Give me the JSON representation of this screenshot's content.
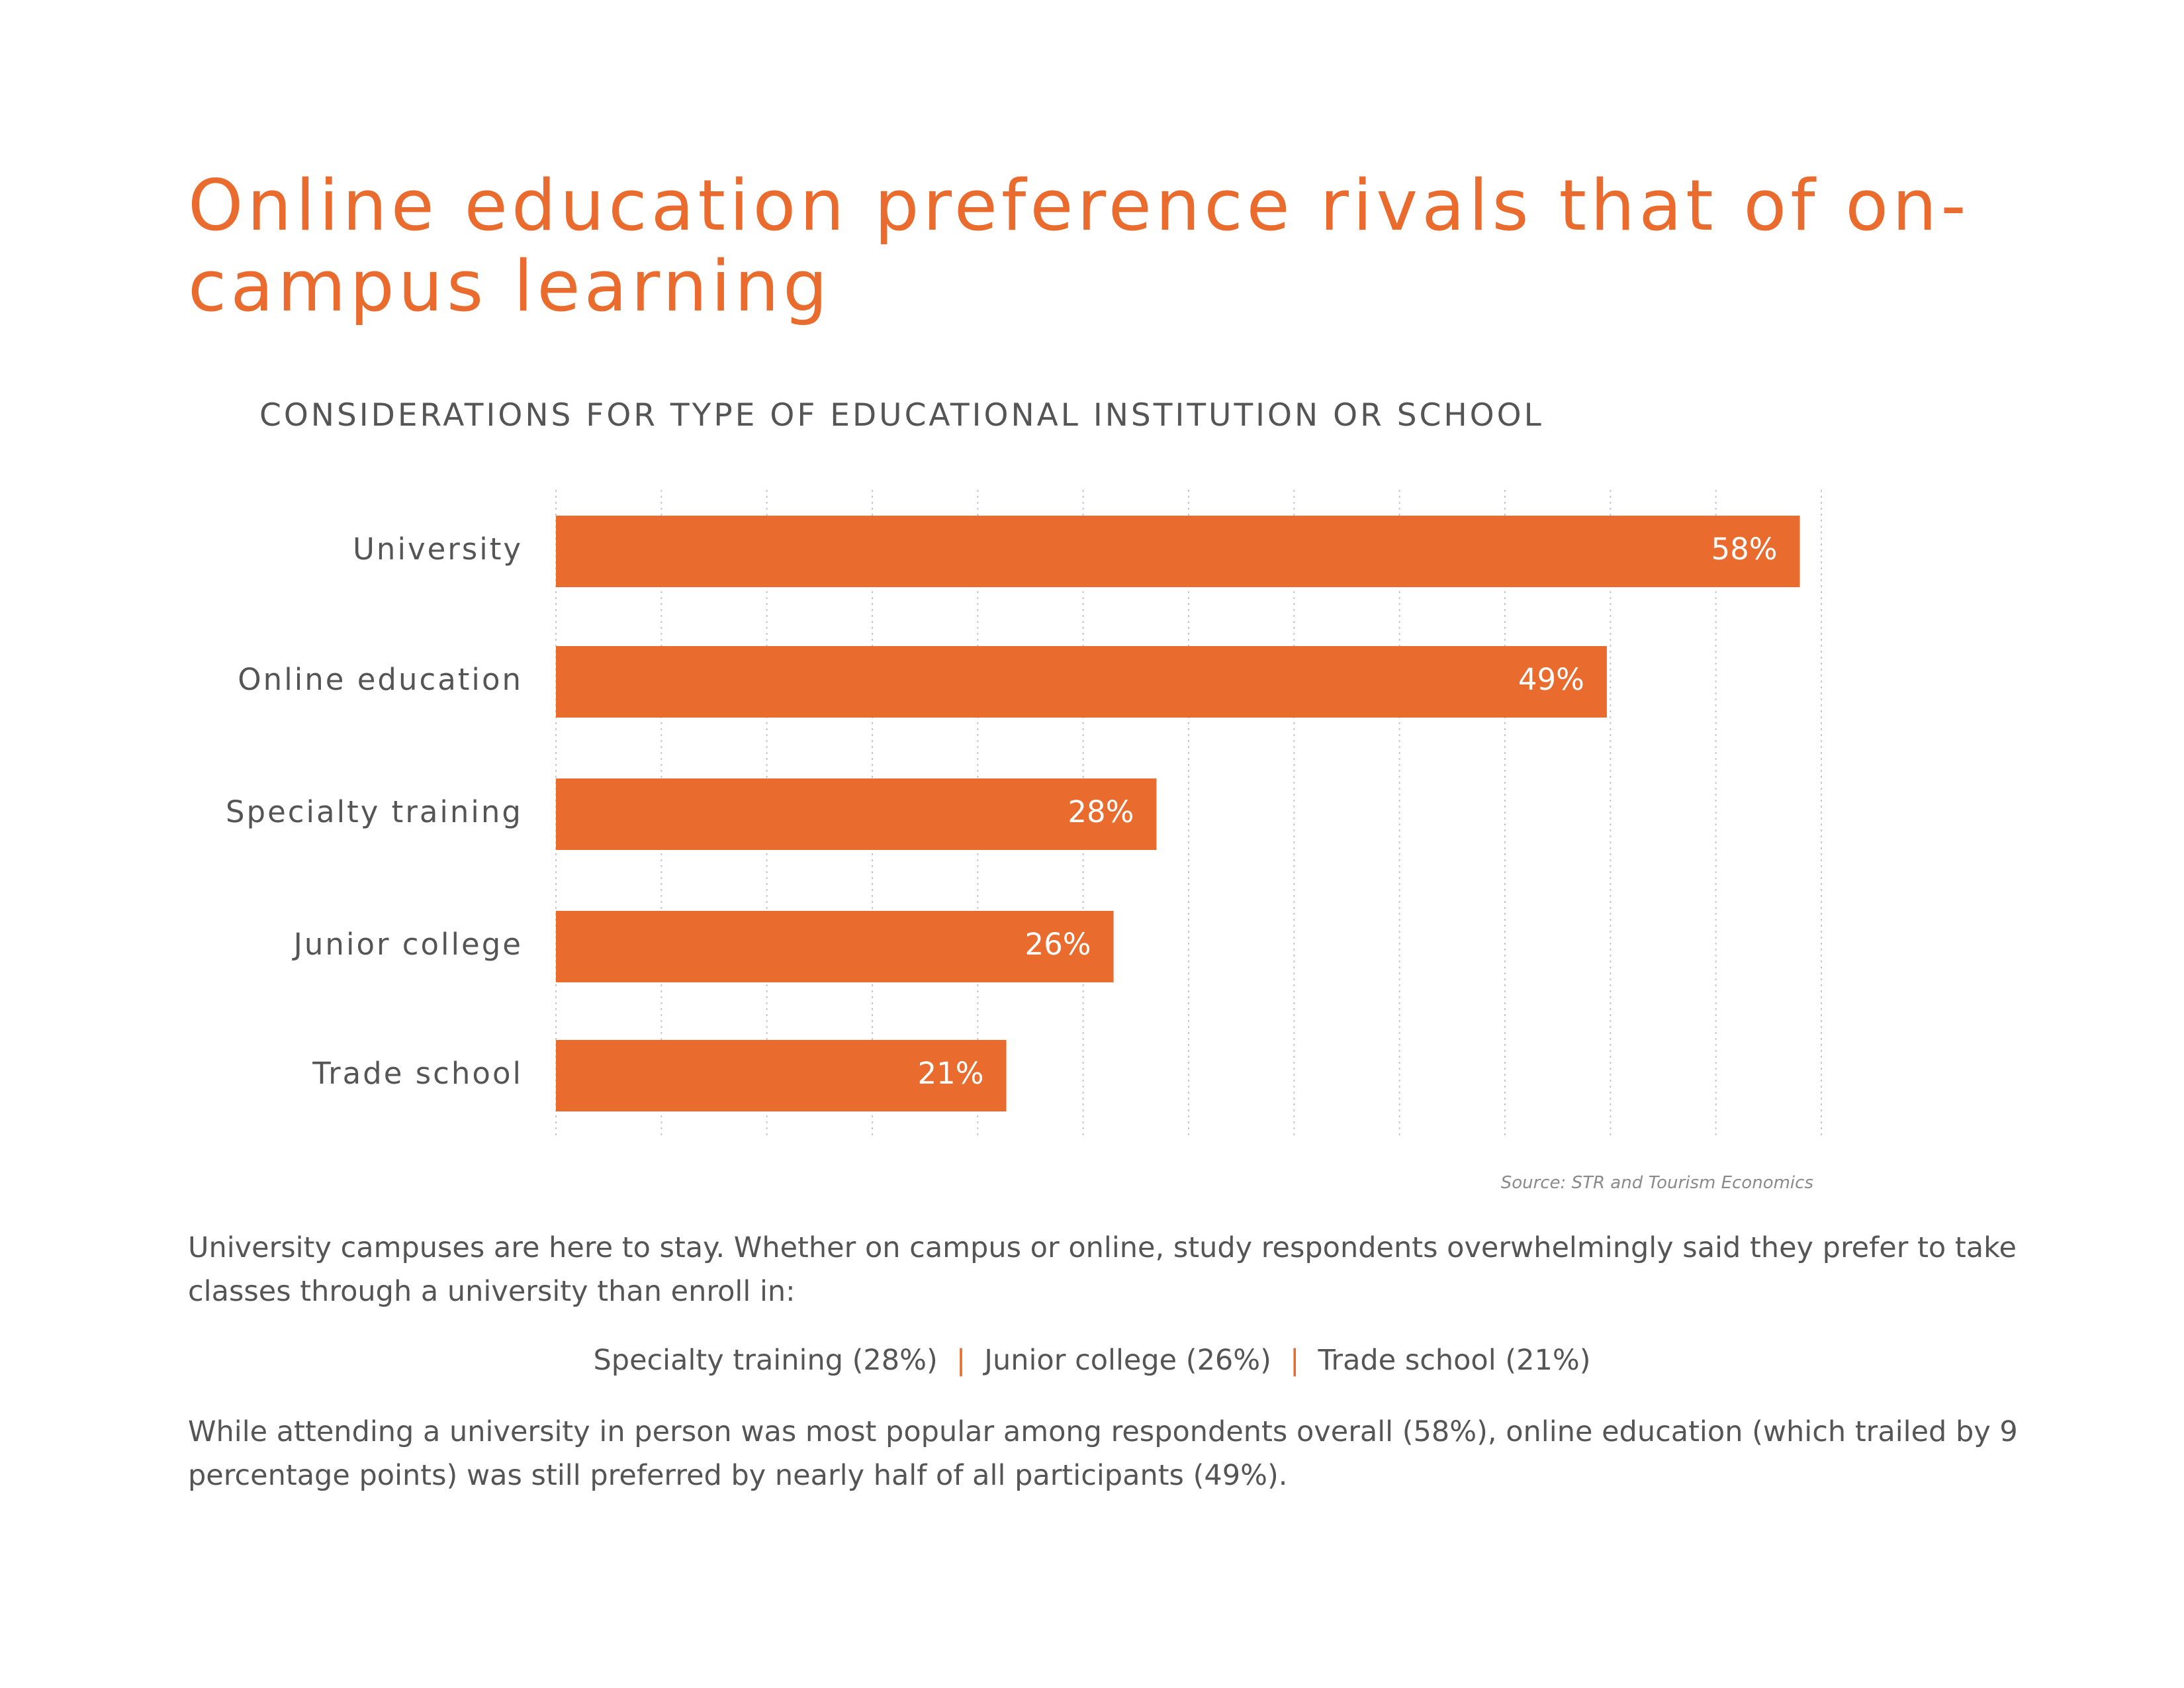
{
  "title": "Online education preference rivals that of on-campus learning",
  "subtitle": "CONSIDERATIONS FOR TYPE OF EDUCATIONAL INSTITUTION OR SCHOOL",
  "source": "Source: STR and Tourism Economics",
  "paragraph1": "University campuses are here to stay. Whether on campus or online, study respondents overwhelmingly said they prefer to take classes through a university than enroll in:",
  "inline_list": [
    "Specialty training (28%)",
    "Junior college (26%)",
    "Trade school (21%)"
  ],
  "separator": "|",
  "paragraph3": "While attending a university in person was most popular among respondents overall (58%), online education (which trailed by 9 percentage points) was still preferred by nearly half of  all participants (49%).",
  "colors": {
    "accent": "#E96C2E",
    "text": "#555555",
    "grid": "#c8c8c8",
    "label_text": "#ffffff"
  },
  "chart_data": {
    "type": "bar",
    "orientation": "horizontal",
    "title": "CONSIDERATIONS FOR TYPE OF EDUCATIONAL INSTITUTION OR SCHOOL",
    "categories": [
      "University",
      "Online education",
      "Specialty training",
      "Junior college",
      "Trade school"
    ],
    "values": [
      58,
      49,
      28,
      26,
      21
    ],
    "value_labels": [
      "58%",
      "49%",
      "28%",
      "26%",
      "21%"
    ],
    "xlim": [
      0,
      59
    ],
    "grid": true,
    "xlabel": "",
    "ylabel": ""
  }
}
